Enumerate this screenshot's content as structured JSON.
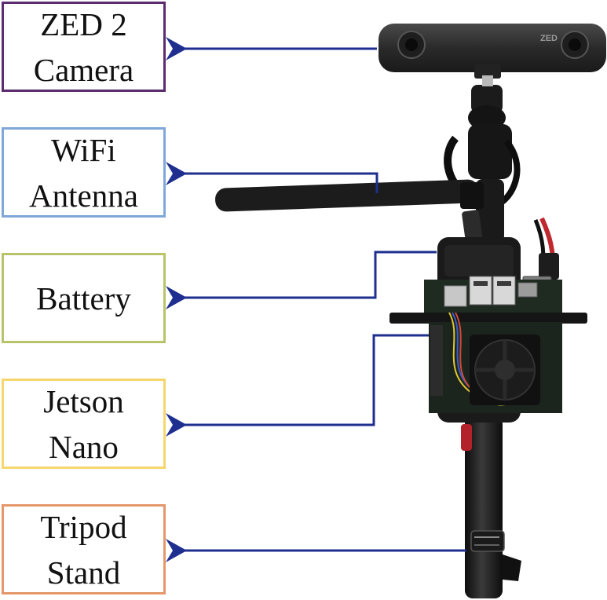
{
  "labels": [
    {
      "id": "zed-camera",
      "lines": [
        "ZED 2",
        "Camera"
      ],
      "color": "#5b2c6f"
    },
    {
      "id": "wifi-antenna",
      "lines": [
        "WiFi",
        "Antenna"
      ],
      "color": "#7fa7d9"
    },
    {
      "id": "battery",
      "lines": [
        "Battery"
      ],
      "color": "#b9c46a"
    },
    {
      "id": "jetson-nano",
      "lines": [
        "Jetson",
        "Nano"
      ],
      "color": "#f5d76e"
    },
    {
      "id": "tripod-stand",
      "lines": [
        "Tripod",
        "Stand"
      ],
      "color": "#e5976a"
    }
  ],
  "camera_badge": "ZED",
  "arrow_color": "#1f2f8f"
}
